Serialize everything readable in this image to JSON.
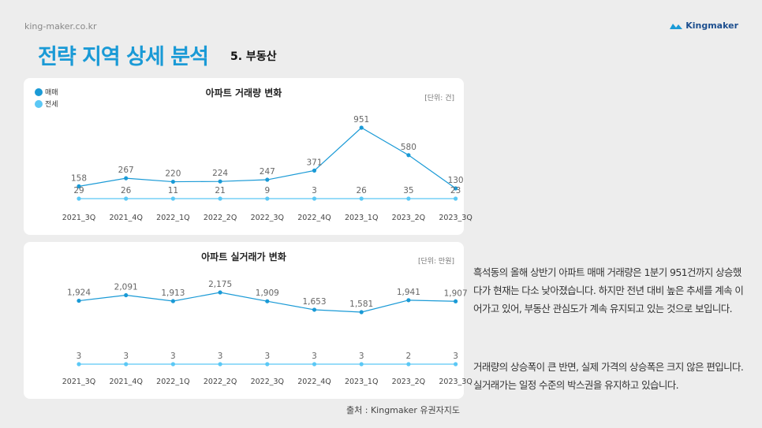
{
  "header": {
    "site": "king-maker.co.kr",
    "brand": "Kingmaker",
    "title": "전략 지역 상세 분석",
    "subtitle": "5. 부동산"
  },
  "colors": {
    "title": "#1a9ad6",
    "sale": "#1a9ad6",
    "jeonse": "#5bc8f5"
  },
  "chart_data": [
    {
      "type": "line",
      "title": "아파트 거래량 변화",
      "unit": "[단위: 건]",
      "categories": [
        "2021_3Q",
        "2021_4Q",
        "2022_1Q",
        "2022_2Q",
        "2022_3Q",
        "2022_4Q",
        "2023_1Q",
        "2023_2Q",
        "2023_3Q"
      ],
      "series": [
        {
          "name": "매매",
          "values": [
            158,
            267,
            220,
            224,
            247,
            371,
            951,
            580,
            130
          ],
          "labels": [
            "158",
            "267",
            "220",
            "224",
            "247",
            "371",
            "951",
            "580",
            "130"
          ]
        },
        {
          "name": "전세",
          "values": [
            29,
            26,
            11,
            21,
            9,
            3,
            26,
            35,
            23
          ],
          "labels": [
            "29",
            "26",
            "11",
            "21",
            "9",
            "3",
            "26",
            "35",
            "23"
          ]
        }
      ],
      "legend_position": "top-left",
      "grid": false
    },
    {
      "type": "line",
      "title": "아파트 실거래가 변화",
      "unit": "[단위: 만원]",
      "categories": [
        "2021_3Q",
        "2021_4Q",
        "2022_1Q",
        "2022_2Q",
        "2022_3Q",
        "2022_4Q",
        "2023_1Q",
        "2023_2Q",
        "2023_3Q"
      ],
      "series": [
        {
          "values": [
            1924,
            2091,
            1913,
            2175,
            1909,
            1653,
            1581,
            1941,
            1907
          ],
          "labels": [
            "1,924",
            "2,091",
            "1,913",
            "2,175",
            "1,909",
            "1,653",
            "1,581",
            "1,941",
            "1,907"
          ]
        },
        {
          "values": [
            3,
            3,
            3,
            3,
            3,
            3,
            3,
            2,
            3
          ],
          "labels": [
            "3",
            "3",
            "3",
            "3",
            "3",
            "3",
            "3",
            "2",
            "3"
          ]
        }
      ],
      "grid": false
    }
  ],
  "description": {
    "paragraph1": "흑석동의 올해 상반기 아파트 매매 거래량은 1분기 951건까지 상승했다가 현재는 다소 낮아졌습니다. 하지만 전년 대비 높은 추세를 계속 이어가고 있어, 부동산 관심도가 계속 유지되고 있는 것으로 보입니다.",
    "paragraph2": "거래량의 상승폭이 큰 반면, 실제 가격의 상승폭은 크지 않은 편입니다.  실거래가는 일정 수준의 박스권을 유지하고 있습니다."
  },
  "source": "출처 : Kingmaker 유권자지도"
}
